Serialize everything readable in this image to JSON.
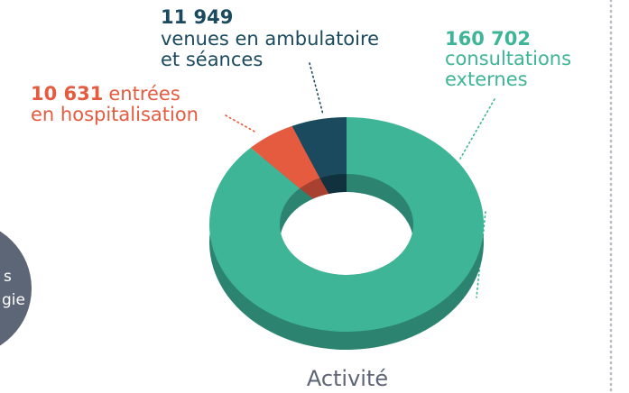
{
  "chart_data": {
    "type": "donut",
    "title": "Activité",
    "values": [
      160702,
      10631,
      11949
    ],
    "value_labels": [
      "160 702",
      "10 631",
      "11 949"
    ],
    "labels": [
      [
        "consultations",
        "externes"
      ],
      [
        "entrées",
        "en hospitalisation"
      ],
      [
        "venues en ambulatoire",
        "et séances"
      ]
    ],
    "colors": [
      "#3db596",
      "#e55b40",
      "#1b4a5e"
    ],
    "depth_colors": [
      "#2c8470",
      "#a8412f",
      "#11313f"
    ]
  },
  "side_badge": {
    "lines": [
      "s",
      "gie"
    ],
    "color": "#5d6676"
  }
}
